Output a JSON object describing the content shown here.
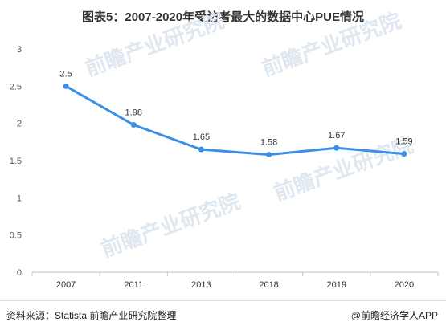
{
  "chart_data": {
    "type": "line",
    "title": "图表5：2007-2020年受访者最大的数据中心PUE情况",
    "categories": [
      "2007",
      "2011",
      "2013",
      "2018",
      "2019",
      "2020"
    ],
    "series": [
      {
        "values": [
          2.5,
          1.98,
          1.65,
          1.58,
          1.67,
          1.59
        ]
      }
    ],
    "data_labels": [
      "2.5",
      "1.98",
      "1.65",
      "1.58",
      "1.67",
      "1.59"
    ],
    "y_ticks": [
      "0",
      "0.5",
      "1",
      "1.5",
      "2",
      "2.5",
      "3"
    ],
    "ylim": [
      0,
      3
    ],
    "grid": false,
    "legend": "none",
    "xlabel": "",
    "ylabel": ""
  },
  "colors": {
    "line": "#3d8fe6",
    "axis": "#bfbfbf",
    "text": "#333333"
  },
  "footer": {
    "source": "资料来源：Statista 前瞻产业研究院整理",
    "brand": "@前瞻经济学人APP"
  },
  "watermark": {
    "text": "前瞻产业研究院"
  }
}
